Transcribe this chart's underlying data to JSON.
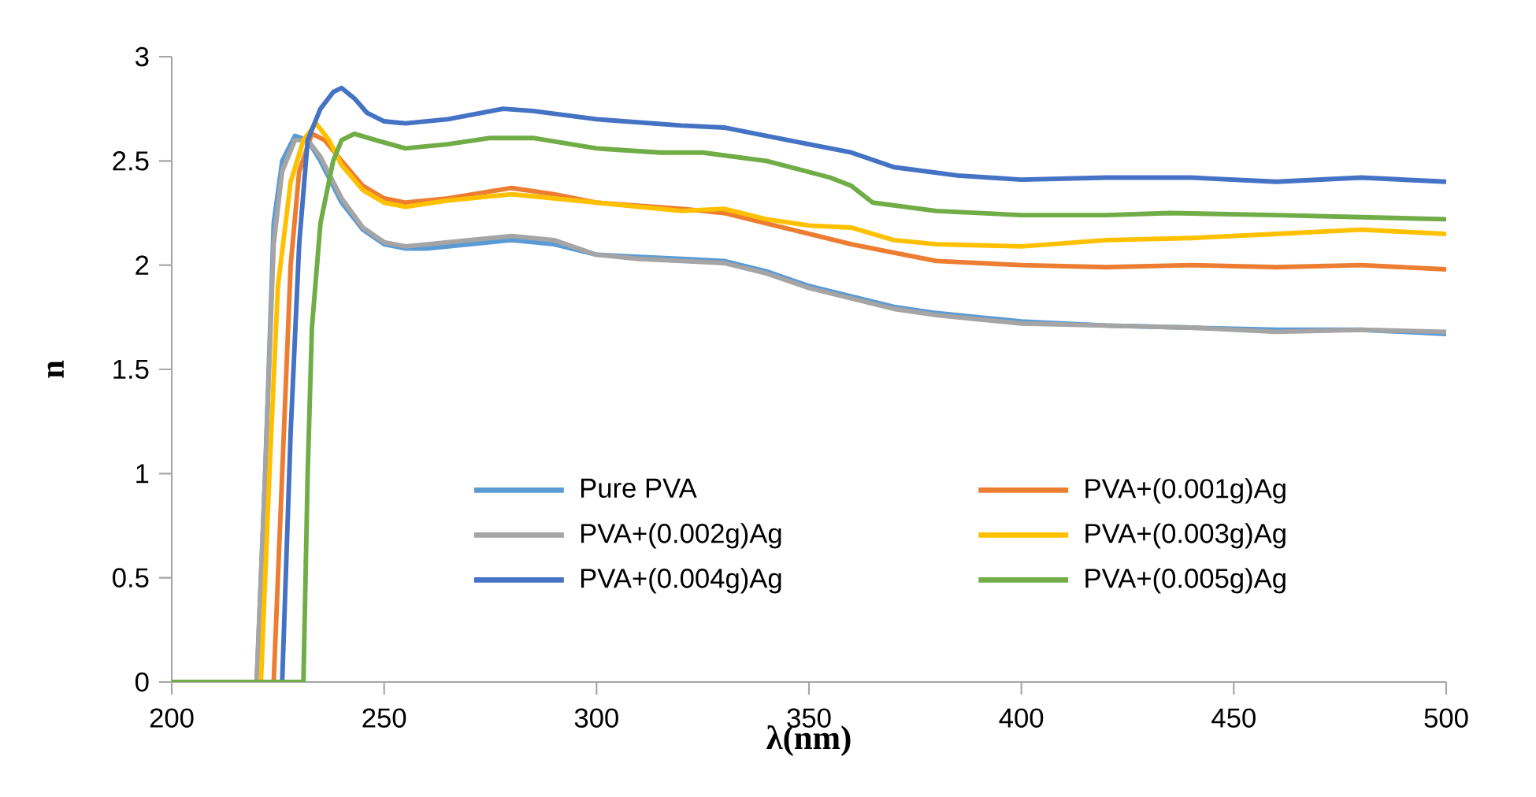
{
  "chart_data": {
    "type": "line",
    "xlabel": "λ(nm)",
    "ylabel": "n",
    "xlim": [
      200,
      500
    ],
    "xticks": [
      200,
      250,
      300,
      350,
      400,
      450,
      500
    ],
    "ylim": [
      0,
      3
    ],
    "yticks": [
      0,
      0.5,
      1,
      1.5,
      2,
      2.5,
      3
    ],
    "grid": false,
    "legend": "bottom",
    "marker": "none",
    "line_style": "solid",
    "series": [
      {
        "name": "Pure PVA",
        "color": "#5b9bd5",
        "x": [
          200,
          220,
          222,
          224,
          226,
          229,
          232,
          235,
          240,
          245,
          250,
          255,
          260,
          270,
          280,
          290,
          300,
          310,
          320,
          330,
          340,
          350,
          360,
          370,
          380,
          390,
          400,
          420,
          440,
          460,
          480,
          500
        ],
        "values": [
          0,
          0,
          1.0,
          2.2,
          2.5,
          2.62,
          2.6,
          2.5,
          2.3,
          2.17,
          2.1,
          2.08,
          2.08,
          2.1,
          2.12,
          2.1,
          2.05,
          2.04,
          2.03,
          2.02,
          1.97,
          1.9,
          1.85,
          1.8,
          1.77,
          1.75,
          1.73,
          1.71,
          1.7,
          1.69,
          1.69,
          1.67
        ]
      },
      {
        "name": "PVA+(0.001g)Ag",
        "color": "#ed7d31",
        "x": [
          200,
          224,
          226,
          228,
          230,
          233,
          236,
          240,
          245,
          250,
          255,
          265,
          280,
          290,
          300,
          320,
          330,
          340,
          350,
          360,
          370,
          380,
          400,
          420,
          440,
          460,
          480,
          500
        ],
        "values": [
          0,
          0,
          1.0,
          2.0,
          2.45,
          2.63,
          2.6,
          2.5,
          2.38,
          2.32,
          2.3,
          2.32,
          2.37,
          2.34,
          2.3,
          2.27,
          2.25,
          2.2,
          2.15,
          2.1,
          2.06,
          2.02,
          2.0,
          1.99,
          2.0,
          1.99,
          2.0,
          1.98
        ]
      },
      {
        "name": "PVA+(0.002g)Ag",
        "color": "#a5a5a5",
        "x": [
          200,
          220,
          222,
          224,
          226,
          229,
          232,
          235,
          240,
          245,
          250,
          255,
          260,
          270,
          280,
          290,
          300,
          310,
          320,
          330,
          340,
          350,
          360,
          370,
          380,
          390,
          400,
          420,
          440,
          460,
          480,
          500
        ],
        "values": [
          0,
          0,
          1.0,
          2.1,
          2.45,
          2.6,
          2.6,
          2.52,
          2.32,
          2.18,
          2.11,
          2.09,
          2.1,
          2.12,
          2.14,
          2.12,
          2.05,
          2.03,
          2.02,
          2.01,
          1.96,
          1.89,
          1.84,
          1.79,
          1.76,
          1.74,
          1.72,
          1.71,
          1.7,
          1.68,
          1.69,
          1.68
        ]
      },
      {
        "name": "PVA+(0.003g)Ag",
        "color": "#ffc000",
        "x": [
          200,
          221,
          223,
          225,
          228,
          231,
          234,
          237,
          240,
          245,
          250,
          255,
          265,
          280,
          300,
          320,
          330,
          340,
          350,
          360,
          370,
          380,
          400,
          420,
          440,
          460,
          480,
          500
        ],
        "values": [
          0,
          0,
          1.0,
          1.9,
          2.4,
          2.6,
          2.68,
          2.6,
          2.48,
          2.36,
          2.3,
          2.28,
          2.31,
          2.34,
          2.3,
          2.26,
          2.27,
          2.22,
          2.19,
          2.18,
          2.12,
          2.1,
          2.09,
          2.12,
          2.13,
          2.15,
          2.17,
          2.15
        ]
      },
      {
        "name": "PVA+(0.004g)Ag",
        "color": "#4472c4",
        "x": [
          200,
          226,
          228,
          230,
          232,
          235,
          238,
          240,
          243,
          246,
          250,
          255,
          265,
          278,
          285,
          300,
          320,
          330,
          345,
          360,
          370,
          385,
          400,
          420,
          440,
          460,
          480,
          500
        ],
        "values": [
          0,
          0,
          1.2,
          2.1,
          2.6,
          2.75,
          2.83,
          2.85,
          2.8,
          2.73,
          2.69,
          2.68,
          2.7,
          2.75,
          2.74,
          2.7,
          2.67,
          2.66,
          2.6,
          2.54,
          2.47,
          2.43,
          2.41,
          2.42,
          2.42,
          2.4,
          2.42,
          2.4
        ]
      },
      {
        "name": "PVA+(0.005g)Ag",
        "color": "#70ad47",
        "x": [
          200,
          231,
          232,
          233,
          235,
          238,
          240,
          243,
          248,
          255,
          265,
          275,
          285,
          300,
          315,
          325,
          340,
          355,
          360,
          365,
          380,
          400,
          420,
          435,
          460,
          480,
          500
        ],
        "values": [
          0,
          0,
          1.0,
          1.7,
          2.2,
          2.5,
          2.6,
          2.63,
          2.6,
          2.56,
          2.58,
          2.61,
          2.61,
          2.56,
          2.54,
          2.54,
          2.5,
          2.42,
          2.38,
          2.3,
          2.26,
          2.24,
          2.24,
          2.25,
          2.24,
          2.23,
          2.22
        ]
      }
    ]
  }
}
